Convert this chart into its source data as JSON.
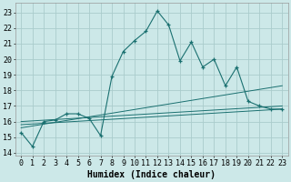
{
  "xlabel": "Humidex (Indice chaleur)",
  "background_color": "#cce8e8",
  "grid_color": "#aacccc",
  "line_color": "#1a7070",
  "xlim": [
    -0.5,
    23.5
  ],
  "ylim": [
    13.8,
    23.6
  ],
  "yticks": [
    14,
    15,
    16,
    17,
    18,
    19,
    20,
    21,
    22,
    23
  ],
  "xticks": [
    0,
    1,
    2,
    3,
    4,
    5,
    6,
    7,
    8,
    9,
    10,
    11,
    12,
    13,
    14,
    15,
    16,
    17,
    18,
    19,
    20,
    21,
    22,
    23
  ],
  "series1_x": [
    0,
    1,
    2,
    3,
    4,
    5,
    6,
    7,
    8,
    9,
    10,
    11,
    12,
    13,
    14,
    15,
    16,
    17,
    18,
    19,
    20,
    21,
    22,
    23
  ],
  "series1_y": [
    15.3,
    14.4,
    16.0,
    16.1,
    16.5,
    16.5,
    16.2,
    15.1,
    18.9,
    20.5,
    21.2,
    21.8,
    23.1,
    22.2,
    19.9,
    21.1,
    19.5,
    20.0,
    18.3,
    19.5,
    17.3,
    17.0,
    16.8,
    16.8
  ],
  "trend1_x": [
    0,
    23
  ],
  "trend1_y": [
    16.0,
    17.0
  ],
  "trend2_x": [
    0,
    23
  ],
  "trend2_y": [
    15.8,
    16.8
  ],
  "trend3_x": [
    0,
    23
  ],
  "trend3_y": [
    15.6,
    18.3
  ],
  "xlabel_fontsize": 7,
  "tick_fontsize": 6
}
